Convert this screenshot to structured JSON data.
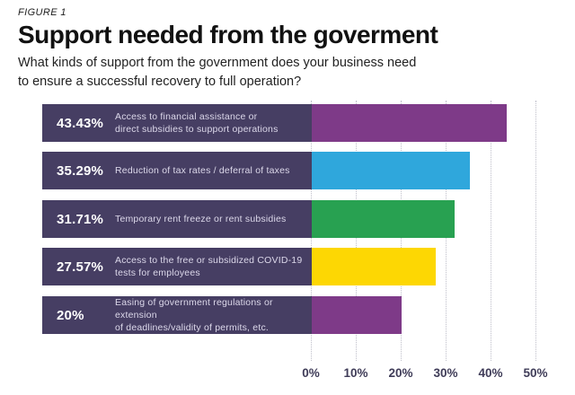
{
  "figure_label": "FIGURE 1",
  "title": "Support needed from the goverment",
  "subtitle": "What kinds of support from the government does your business need\nto ensure a successful recovery to full operation?",
  "colors": {
    "label_block_background": "#463e63",
    "label_text": "#ffffff",
    "description_text": "#dcd8ea",
    "axis_text": "#3f3c58",
    "gridline": "#bfbfca",
    "background": "#ffffff"
  },
  "chart_data": {
    "type": "bar",
    "orientation": "horizontal",
    "title": "Support needed from the goverment",
    "categories": [
      "Access to financial assistance or\ndirect subsidies to support operations",
      "Reduction of tax rates / deferral of taxes",
      "Temporary rent freeze or rent subsidies",
      "Access to the free or subsidized COVID-19\ntests for employees",
      "Easing of government regulations or extension\nof deadlines/validity of permits, etc."
    ],
    "values": [
      43.43,
      35.29,
      31.71,
      27.57,
      20
    ],
    "value_labels": [
      "43.43%",
      "35.29%",
      "31.71%",
      "27.57%",
      "20%"
    ],
    "bar_colors": [
      "#7e3a88",
      "#2fa7dc",
      "#28a151",
      "#fdd703",
      "#7e3a88"
    ],
    "xlim": [
      0,
      50
    ],
    "x_tick_labels": [
      "0%",
      "10%",
      "20%",
      "30%",
      "40%",
      "50%"
    ],
    "grid": "dotted-vertical",
    "legend": "none"
  }
}
